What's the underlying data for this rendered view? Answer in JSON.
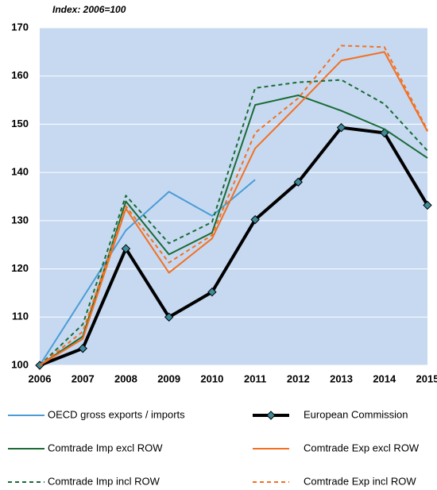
{
  "chart_data": {
    "type": "line",
    "subtitle": "Index: 2006=100",
    "categories": [
      "2006",
      "2007",
      "2008",
      "2009",
      "2010",
      "2011",
      "2012",
      "2013",
      "2014",
      "2015"
    ],
    "ylim": [
      100,
      170
    ],
    "yticks": [
      100,
      110,
      120,
      130,
      140,
      150,
      160,
      170
    ],
    "grid": true,
    "background": "#c6d9f1",
    "series": [
      {
        "name": "OECD gross exports / imports",
        "color": "#4a9cd6",
        "dashed": false,
        "width": 2,
        "values": [
          100,
          114,
          128,
          136,
          131,
          138.5,
          null,
          null,
          null,
          null
        ]
      },
      {
        "name": "European Commission",
        "color": "#000000",
        "dashed": false,
        "width": 4,
        "marker": "diamond",
        "marker_color": "#3e8a9a",
        "values": [
          100,
          103.5,
          124.2,
          110,
          115.2,
          130.2,
          138,
          149.3,
          148.2,
          133.2
        ]
      },
      {
        "name": "Comtrade Imp excl ROW",
        "color": "#1a6b35",
        "dashed": false,
        "width": 2,
        "values": [
          100,
          106,
          134,
          123,
          127.5,
          154,
          156,
          152.8,
          149,
          143
        ]
      },
      {
        "name": "Comtrade Exp excl ROW",
        "color": "#f37021",
        "dashed": false,
        "width": 2,
        "values": [
          100,
          105.5,
          132.5,
          119.2,
          126.3,
          145,
          154,
          163.2,
          165,
          148.5
        ]
      },
      {
        "name": "Comtrade Imp incl ROW",
        "color": "#1a6b35",
        "dashed": true,
        "width": 2,
        "values": [
          100,
          108.5,
          135.2,
          125.3,
          129.7,
          157.5,
          158.7,
          159.2,
          154.2,
          144.5
        ]
      },
      {
        "name": "Comtrade Exp incl ROW",
        "color": "#f37021",
        "dashed": true,
        "width": 2,
        "values": [
          100,
          107,
          133,
          121.3,
          127,
          148.2,
          155.4,
          166.3,
          166,
          148.8
        ]
      }
    ]
  }
}
